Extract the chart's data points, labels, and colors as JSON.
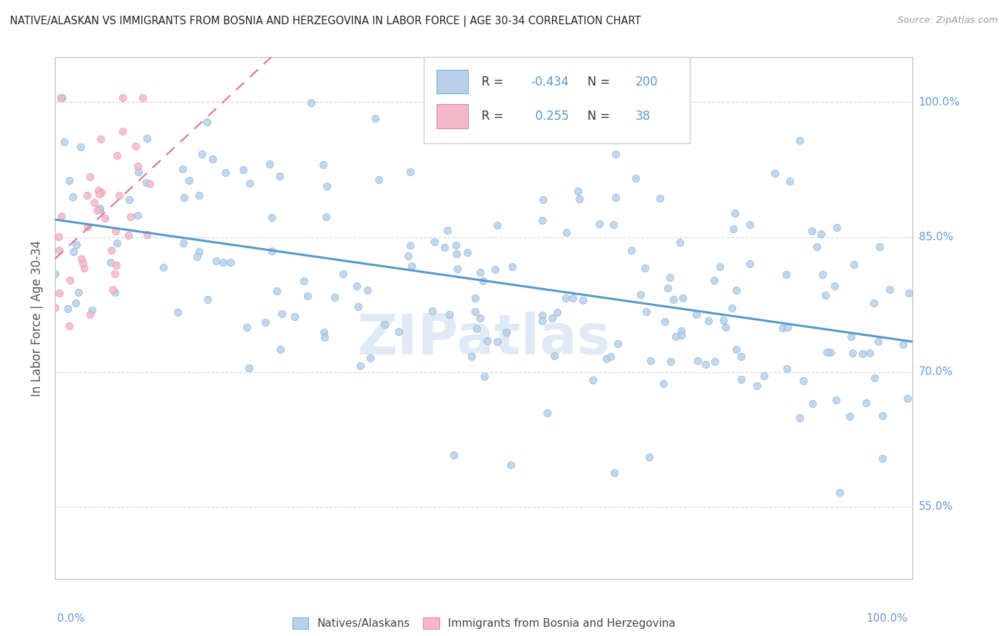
{
  "title": "NATIVE/ALASKAN VS IMMIGRANTS FROM BOSNIA AND HERZEGOVINA IN LABOR FORCE | AGE 30-34 CORRELATION CHART",
  "source": "Source: ZipAtlas.com",
  "ylabel": "In Labor Force | Age 30-34",
  "xlim": [
    0.0,
    1.0
  ],
  "ylim": [
    0.47,
    1.05
  ],
  "blue_R": -0.434,
  "blue_N": 200,
  "pink_R": 0.255,
  "pink_N": 38,
  "blue_fill": "#b8d0ea",
  "blue_edge": "#7aaad0",
  "blue_line": "#5599cc",
  "pink_fill": "#f5b8c8",
  "pink_edge": "#e088a0",
  "pink_line": "#dd7799",
  "watermark": "ZIPatlas",
  "watermark_color": "#ccddf0",
  "legend_blue_label": "Natives/Alaskans",
  "legend_pink_label": "Immigrants from Bosnia and Herzegovina",
  "bg_color": "#ffffff",
  "grid_color": "#d0dae8",
  "label_color": "#6699cc",
  "title_color": "#222222",
  "source_color": "#999999",
  "ytick_vals": [
    0.55,
    0.7,
    0.85,
    1.0
  ],
  "ytick_labels": [
    "55.0%",
    "70.0%",
    "85.0%",
    "100.0%"
  ]
}
